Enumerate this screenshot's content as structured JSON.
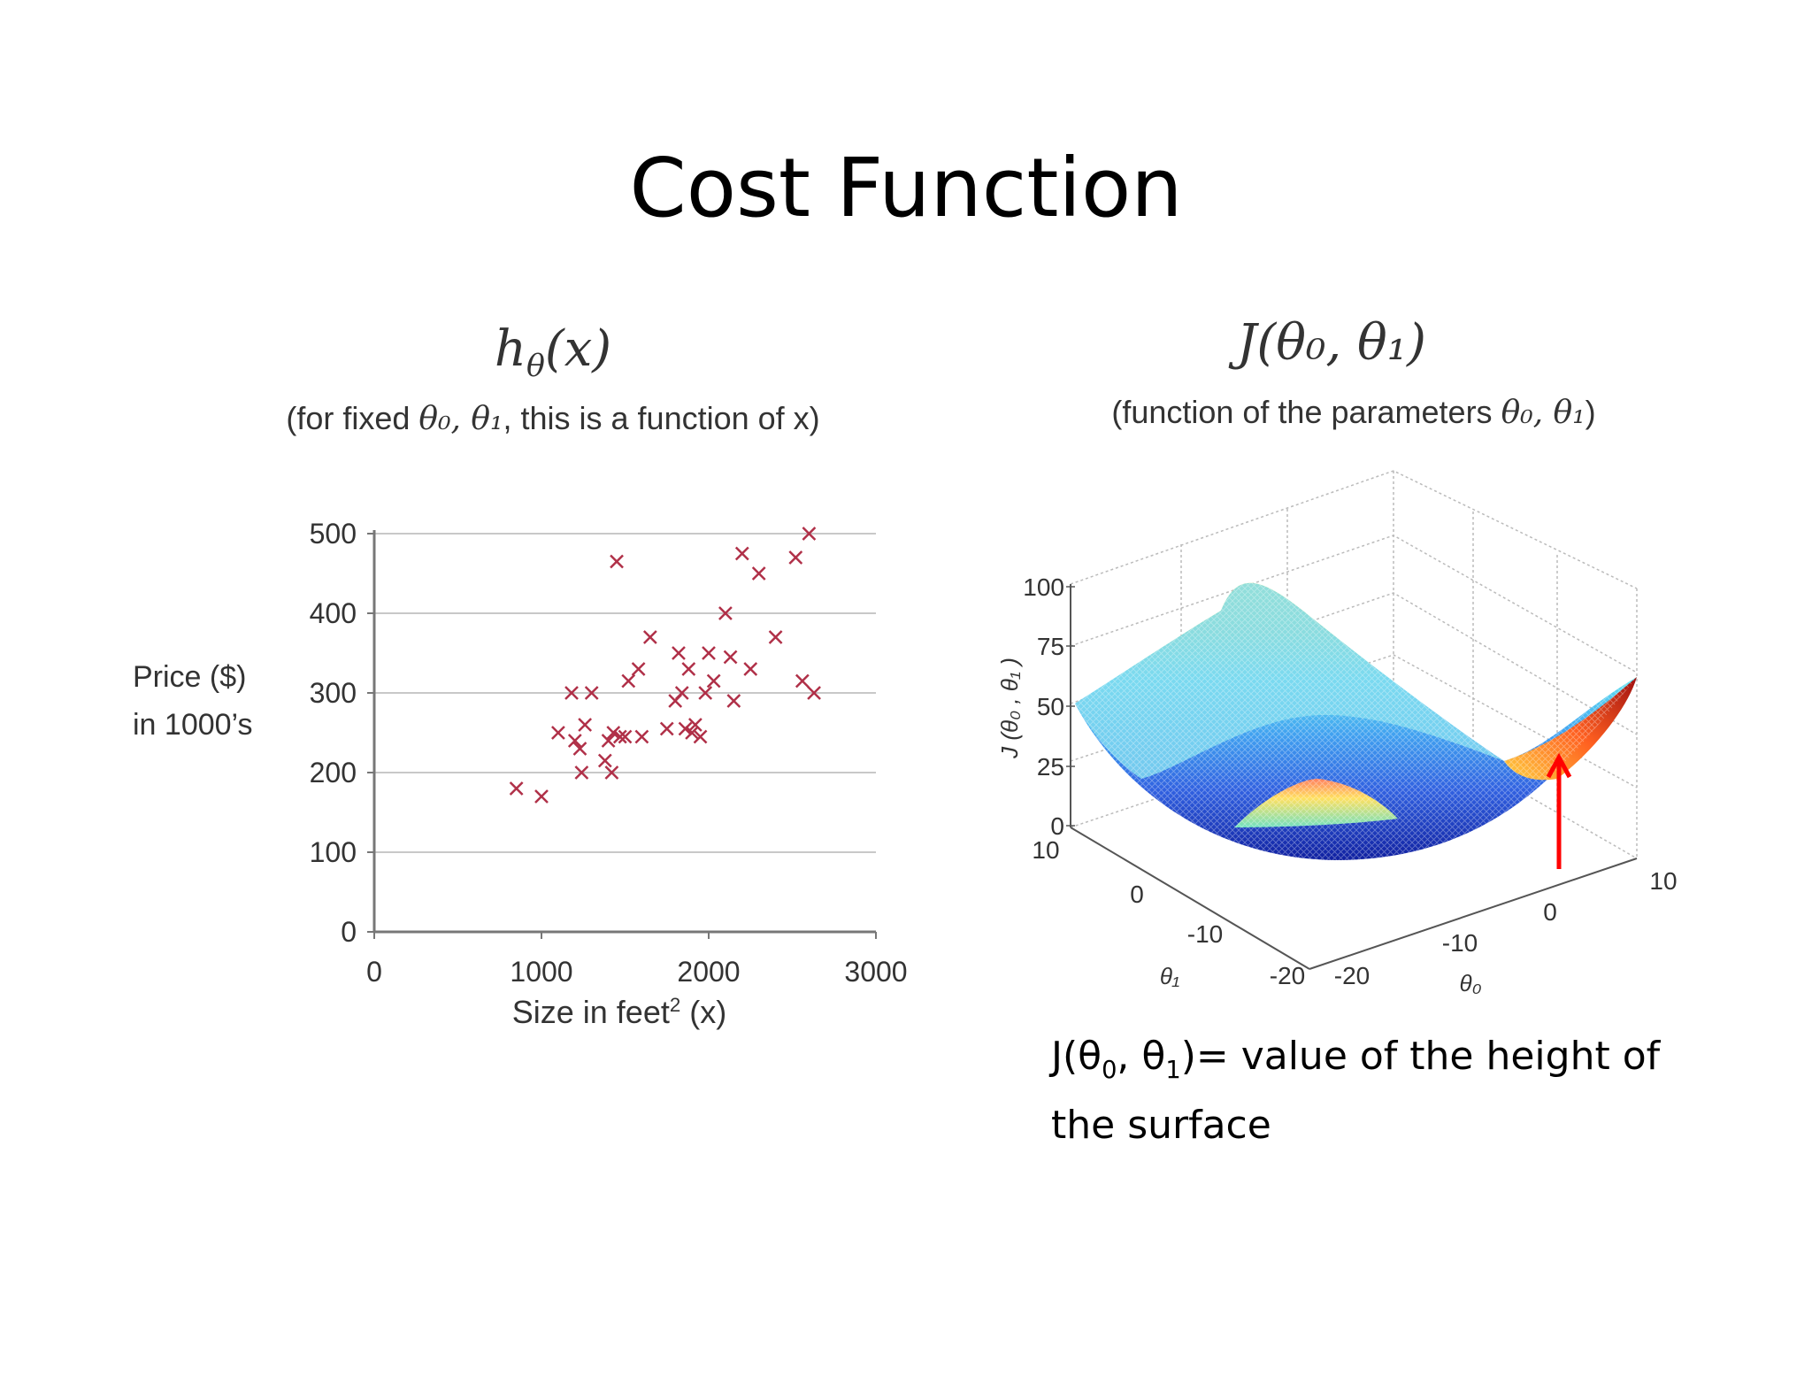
{
  "slide": {
    "title": "Cost Function"
  },
  "left": {
    "title_main": "h",
    "title_sub": "θ",
    "title_arg": "(x)",
    "subtitle_pre": "(for fixed ",
    "subtitle_theta": "θ₀, θ₁",
    "subtitle_post": ", this is a function of x)",
    "ylabel_line1": "Price ($)",
    "ylabel_line2": "in 1000’s",
    "xlabel_main": "Size in feet",
    "xlabel_sup": "2",
    "xlabel_post": " (x)"
  },
  "right": {
    "title": "J(θ₀, θ₁)",
    "subtitle_pre": "(function of the parameters ",
    "subtitle_theta": "θ₀, θ₁",
    "subtitle_post": ")",
    "zlabel": "J (θ₀ , θ₁ )",
    "theta1_label": "θ₁",
    "theta0_label": "θ₀",
    "z_ticks": [
      "100",
      "75",
      "50",
      "25",
      "0"
    ],
    "theta1_ticks": [
      "10",
      "0",
      "-10",
      "-20"
    ],
    "theta0_ticks": [
      "-20",
      "-10",
      "0",
      "10"
    ],
    "caption_pre": "J(θ",
    "caption_sub0": "0",
    "caption_mid": ", θ",
    "caption_sub1": "1",
    "caption_post": ")= value of the height of the surface",
    "arrow_color": "#ff0000"
  },
  "chart_data": [
    {
      "type": "scatter",
      "marker": "x",
      "marker_color": "#b03048",
      "xlim": [
        0,
        3000
      ],
      "ylim": [
        0,
        500
      ],
      "x_ticks": [
        0,
        1000,
        2000,
        3000
      ],
      "y_ticks": [
        0,
        100,
        200,
        300,
        400,
        500
      ],
      "grid": "horizontal",
      "points": [
        [
          850,
          180
        ],
        [
          1000,
          170
        ],
        [
          1100,
          250
        ],
        [
          1180,
          300
        ],
        [
          1200,
          240
        ],
        [
          1230,
          230
        ],
        [
          1240,
          200
        ],
        [
          1260,
          260
        ],
        [
          1300,
          300
        ],
        [
          1380,
          215
        ],
        [
          1400,
          240
        ],
        [
          1420,
          200
        ],
        [
          1430,
          250
        ],
        [
          1450,
          465
        ],
        [
          1470,
          245
        ],
        [
          1500,
          245
        ],
        [
          1520,
          315
        ],
        [
          1580,
          330
        ],
        [
          1600,
          245
        ],
        [
          1650,
          370
        ],
        [
          1750,
          255
        ],
        [
          1800,
          290
        ],
        [
          1820,
          350
        ],
        [
          1840,
          300
        ],
        [
          1860,
          255
        ],
        [
          1880,
          330
        ],
        [
          1900,
          250
        ],
        [
          1920,
          260
        ],
        [
          1950,
          245
        ],
        [
          1980,
          300
        ],
        [
          2000,
          350
        ],
        [
          2030,
          315
        ],
        [
          2100,
          400
        ],
        [
          2130,
          345
        ],
        [
          2150,
          290
        ],
        [
          2200,
          475
        ],
        [
          2250,
          330
        ],
        [
          2300,
          450
        ],
        [
          2400,
          370
        ],
        [
          2520,
          470
        ],
        [
          2560,
          315
        ],
        [
          2600,
          500
        ],
        [
          2630,
          300
        ]
      ]
    },
    {
      "type": "surface",
      "colormap": "jet",
      "zlim": [
        0,
        100
      ],
      "theta0_range": [
        -20,
        10
      ],
      "theta1_range": [
        -20,
        10
      ]
    }
  ]
}
